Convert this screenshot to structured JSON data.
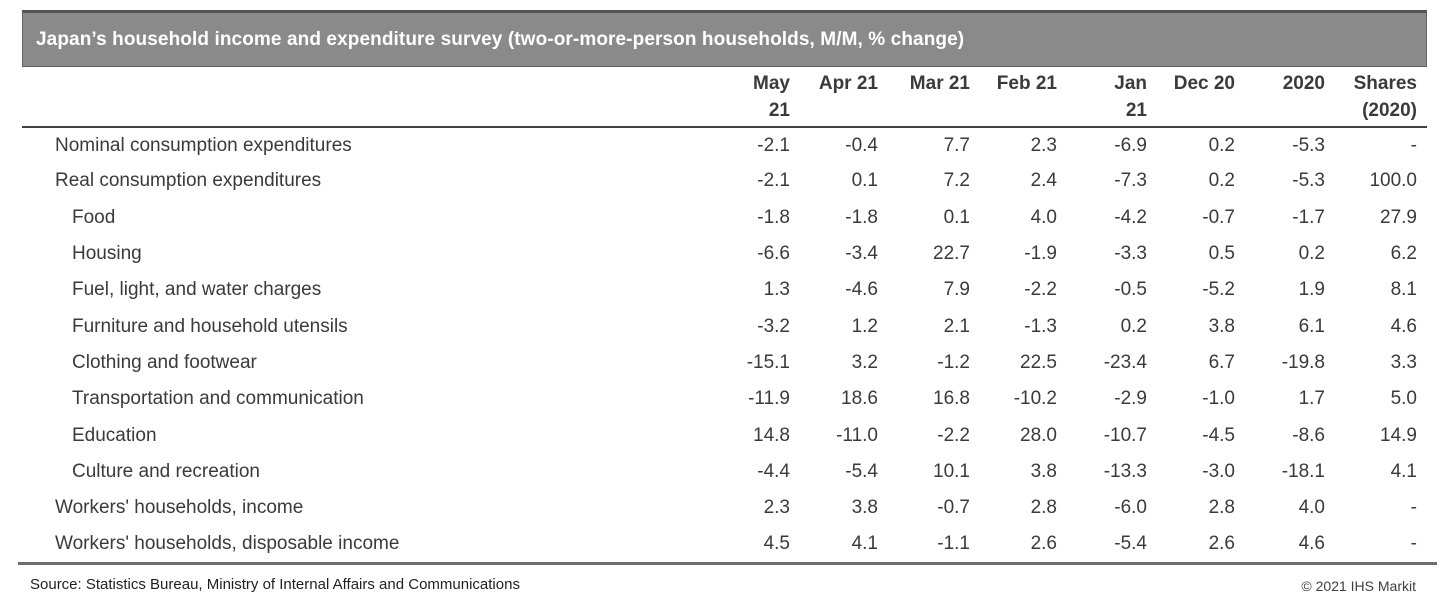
{
  "chart_data": {
    "type": "table",
    "title": "Japan’s household income and expenditure survey (two-or-more-person households, M/M, % change)",
    "columns": [
      {
        "label": "May 21",
        "line1": "May",
        "line2": "21"
      },
      {
        "label": "Apr 21",
        "line1": "Apr 21",
        "line2": ""
      },
      {
        "label": "Mar 21",
        "line1": "Mar 21",
        "line2": ""
      },
      {
        "label": "Feb 21",
        "line1": "Feb 21",
        "line2": ""
      },
      {
        "label": "Jan 21",
        "line1": "Jan",
        "line2": "21"
      },
      {
        "label": "Dec 20",
        "line1": "Dec 20",
        "line2": ""
      },
      {
        "label": "2020",
        "line1": "2020",
        "line2": ""
      },
      {
        "label": "Shares (2020)",
        "line1": "Shares",
        "line2": "(2020)"
      }
    ],
    "rows": [
      {
        "label": "Nominal consumption expenditures",
        "level": 1,
        "values": [
          "-2.1",
          "-0.4",
          "7.7",
          "2.3",
          "-6.9",
          "0.2",
          "-5.3",
          "-"
        ]
      },
      {
        "label": "Real consumption expenditures",
        "level": 1,
        "values": [
          "-2.1",
          "0.1",
          "7.2",
          "2.4",
          "-7.3",
          "0.2",
          "-5.3",
          "100.0"
        ]
      },
      {
        "label": "Food",
        "level": 2,
        "values": [
          "-1.8",
          "-1.8",
          "0.1",
          "4.0",
          "-4.2",
          "-0.7",
          "-1.7",
          "27.9"
        ]
      },
      {
        "label": "Housing",
        "level": 2,
        "values": [
          "-6.6",
          "-3.4",
          "22.7",
          "-1.9",
          "-3.3",
          "0.5",
          "0.2",
          "6.2"
        ]
      },
      {
        "label": "Fuel, light, and water charges",
        "level": 2,
        "values": [
          "1.3",
          "-4.6",
          "7.9",
          "-2.2",
          "-0.5",
          "-5.2",
          "1.9",
          "8.1"
        ]
      },
      {
        "label": "Furniture and household utensils",
        "level": 2,
        "values": [
          "-3.2",
          "1.2",
          "2.1",
          "-1.3",
          "0.2",
          "3.8",
          "6.1",
          "4.6"
        ]
      },
      {
        "label": "Clothing and footwear",
        "level": 2,
        "values": [
          "-15.1",
          "3.2",
          "-1.2",
          "22.5",
          "-23.4",
          "6.7",
          "-19.8",
          "3.3"
        ]
      },
      {
        "label": "Transportation and communication",
        "level": 2,
        "values": [
          "-11.9",
          "18.6",
          "16.8",
          "-10.2",
          "-2.9",
          "-1.0",
          "1.7",
          "5.0"
        ]
      },
      {
        "label": "Education",
        "level": 2,
        "values": [
          "14.8",
          "-11.0",
          "-2.2",
          "28.0",
          "-10.7",
          "-4.5",
          "-8.6",
          "14.9"
        ]
      },
      {
        "label": "Culture and recreation",
        "level": 2,
        "values": [
          "-4.4",
          "-5.4",
          "10.1",
          "3.8",
          "-13.3",
          "-3.0",
          "-18.1",
          "4.1"
        ]
      },
      {
        "label": "Workers' households, income",
        "level": 1,
        "values": [
          "2.3",
          "3.8",
          "-0.7",
          "2.8",
          "-6.0",
          "2.8",
          "4.0",
          "-"
        ]
      },
      {
        "label": "Workers' households, disposable income",
        "level": 1,
        "values": [
          "4.5",
          "4.1",
          "-1.1",
          "2.6",
          "-5.4",
          "2.6",
          "4.6",
          "-"
        ]
      }
    ]
  },
  "footer": {
    "source": "Source: Statistics Bureau, Ministry of Internal Affairs and Communications",
    "copyright": "© 2021 IHS Markit"
  },
  "colors": {
    "title_bar_bg": "#8a8a8a",
    "title_bar_border": "#545454",
    "title_text": "#ffffff",
    "body_text": "#3a3a3a",
    "header_rule": "#414141",
    "footer_rule": "#6e6e6e"
  }
}
